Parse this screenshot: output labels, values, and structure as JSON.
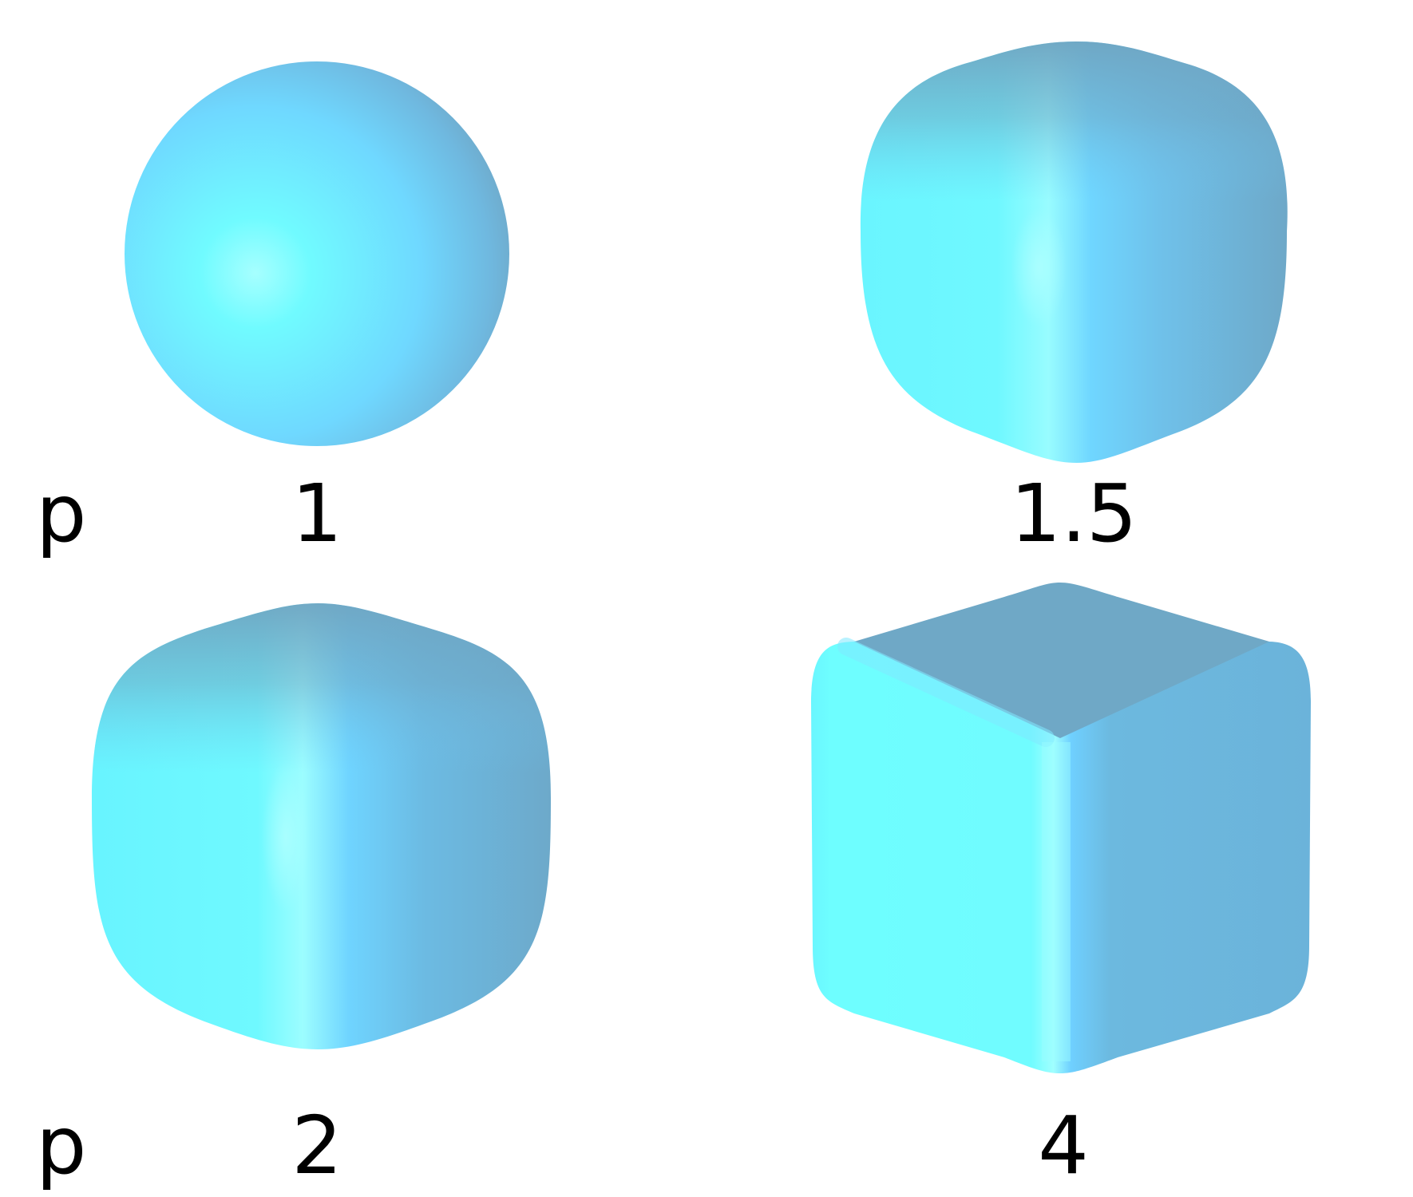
{
  "row_label": "p",
  "panels": [
    {
      "value": 1,
      "label": "1",
      "shape": "sphere"
    },
    {
      "value": 1.5,
      "label": "1.5",
      "shape": "rounded-cube"
    },
    {
      "value": 2,
      "label": "2",
      "shape": "rounded-cube"
    },
    {
      "value": 4,
      "label": "4",
      "shape": "cube"
    }
  ],
  "colors": {
    "highlight": "#a0ffff",
    "light": "#6ef8ff",
    "mid": "#6fd0ff",
    "side": "#6cb8df",
    "shadow": "#6fa5c2"
  }
}
